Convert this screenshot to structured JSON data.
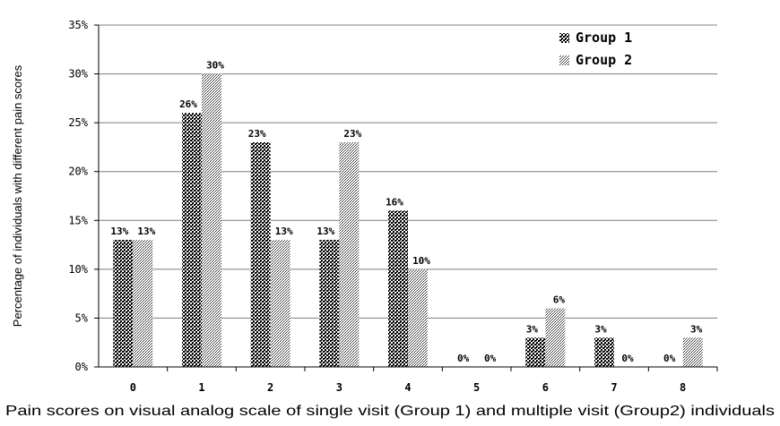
{
  "chart_data": {
    "type": "bar",
    "categories": [
      "0",
      "1",
      "2",
      "3",
      "4",
      "5",
      "6",
      "7",
      "8"
    ],
    "series": [
      {
        "name": "Group 1",
        "values": [
          13,
          26,
          23,
          13,
          16,
          0,
          3,
          3,
          0
        ],
        "labels": [
          "13%",
          "26%",
          "23%",
          "13%",
          "16%",
          "0%",
          "3%",
          "3%",
          "0%"
        ],
        "color": "#000000"
      },
      {
        "name": "Group 2",
        "values": [
          13,
          30,
          13,
          23,
          10,
          0,
          6,
          0,
          3
        ],
        "labels": [
          "13%",
          "30%",
          "13%",
          "23%",
          "10%",
          "0%",
          "6%",
          "0%",
          "3%"
        ],
        "color": "#555555"
      }
    ],
    "xlabel": "Pain scores on visual analog scale of single visit (Group 1) and multiple visit (Group2) individuals",
    "ylabel": "Percentage of individuals with different pain scores",
    "yticks": [
      "0%",
      "5%",
      "10%",
      "15%",
      "20%",
      "25%",
      "30%",
      "35%"
    ],
    "ylim": [
      0,
      35
    ],
    "grid": true,
    "legend": "top-right"
  }
}
